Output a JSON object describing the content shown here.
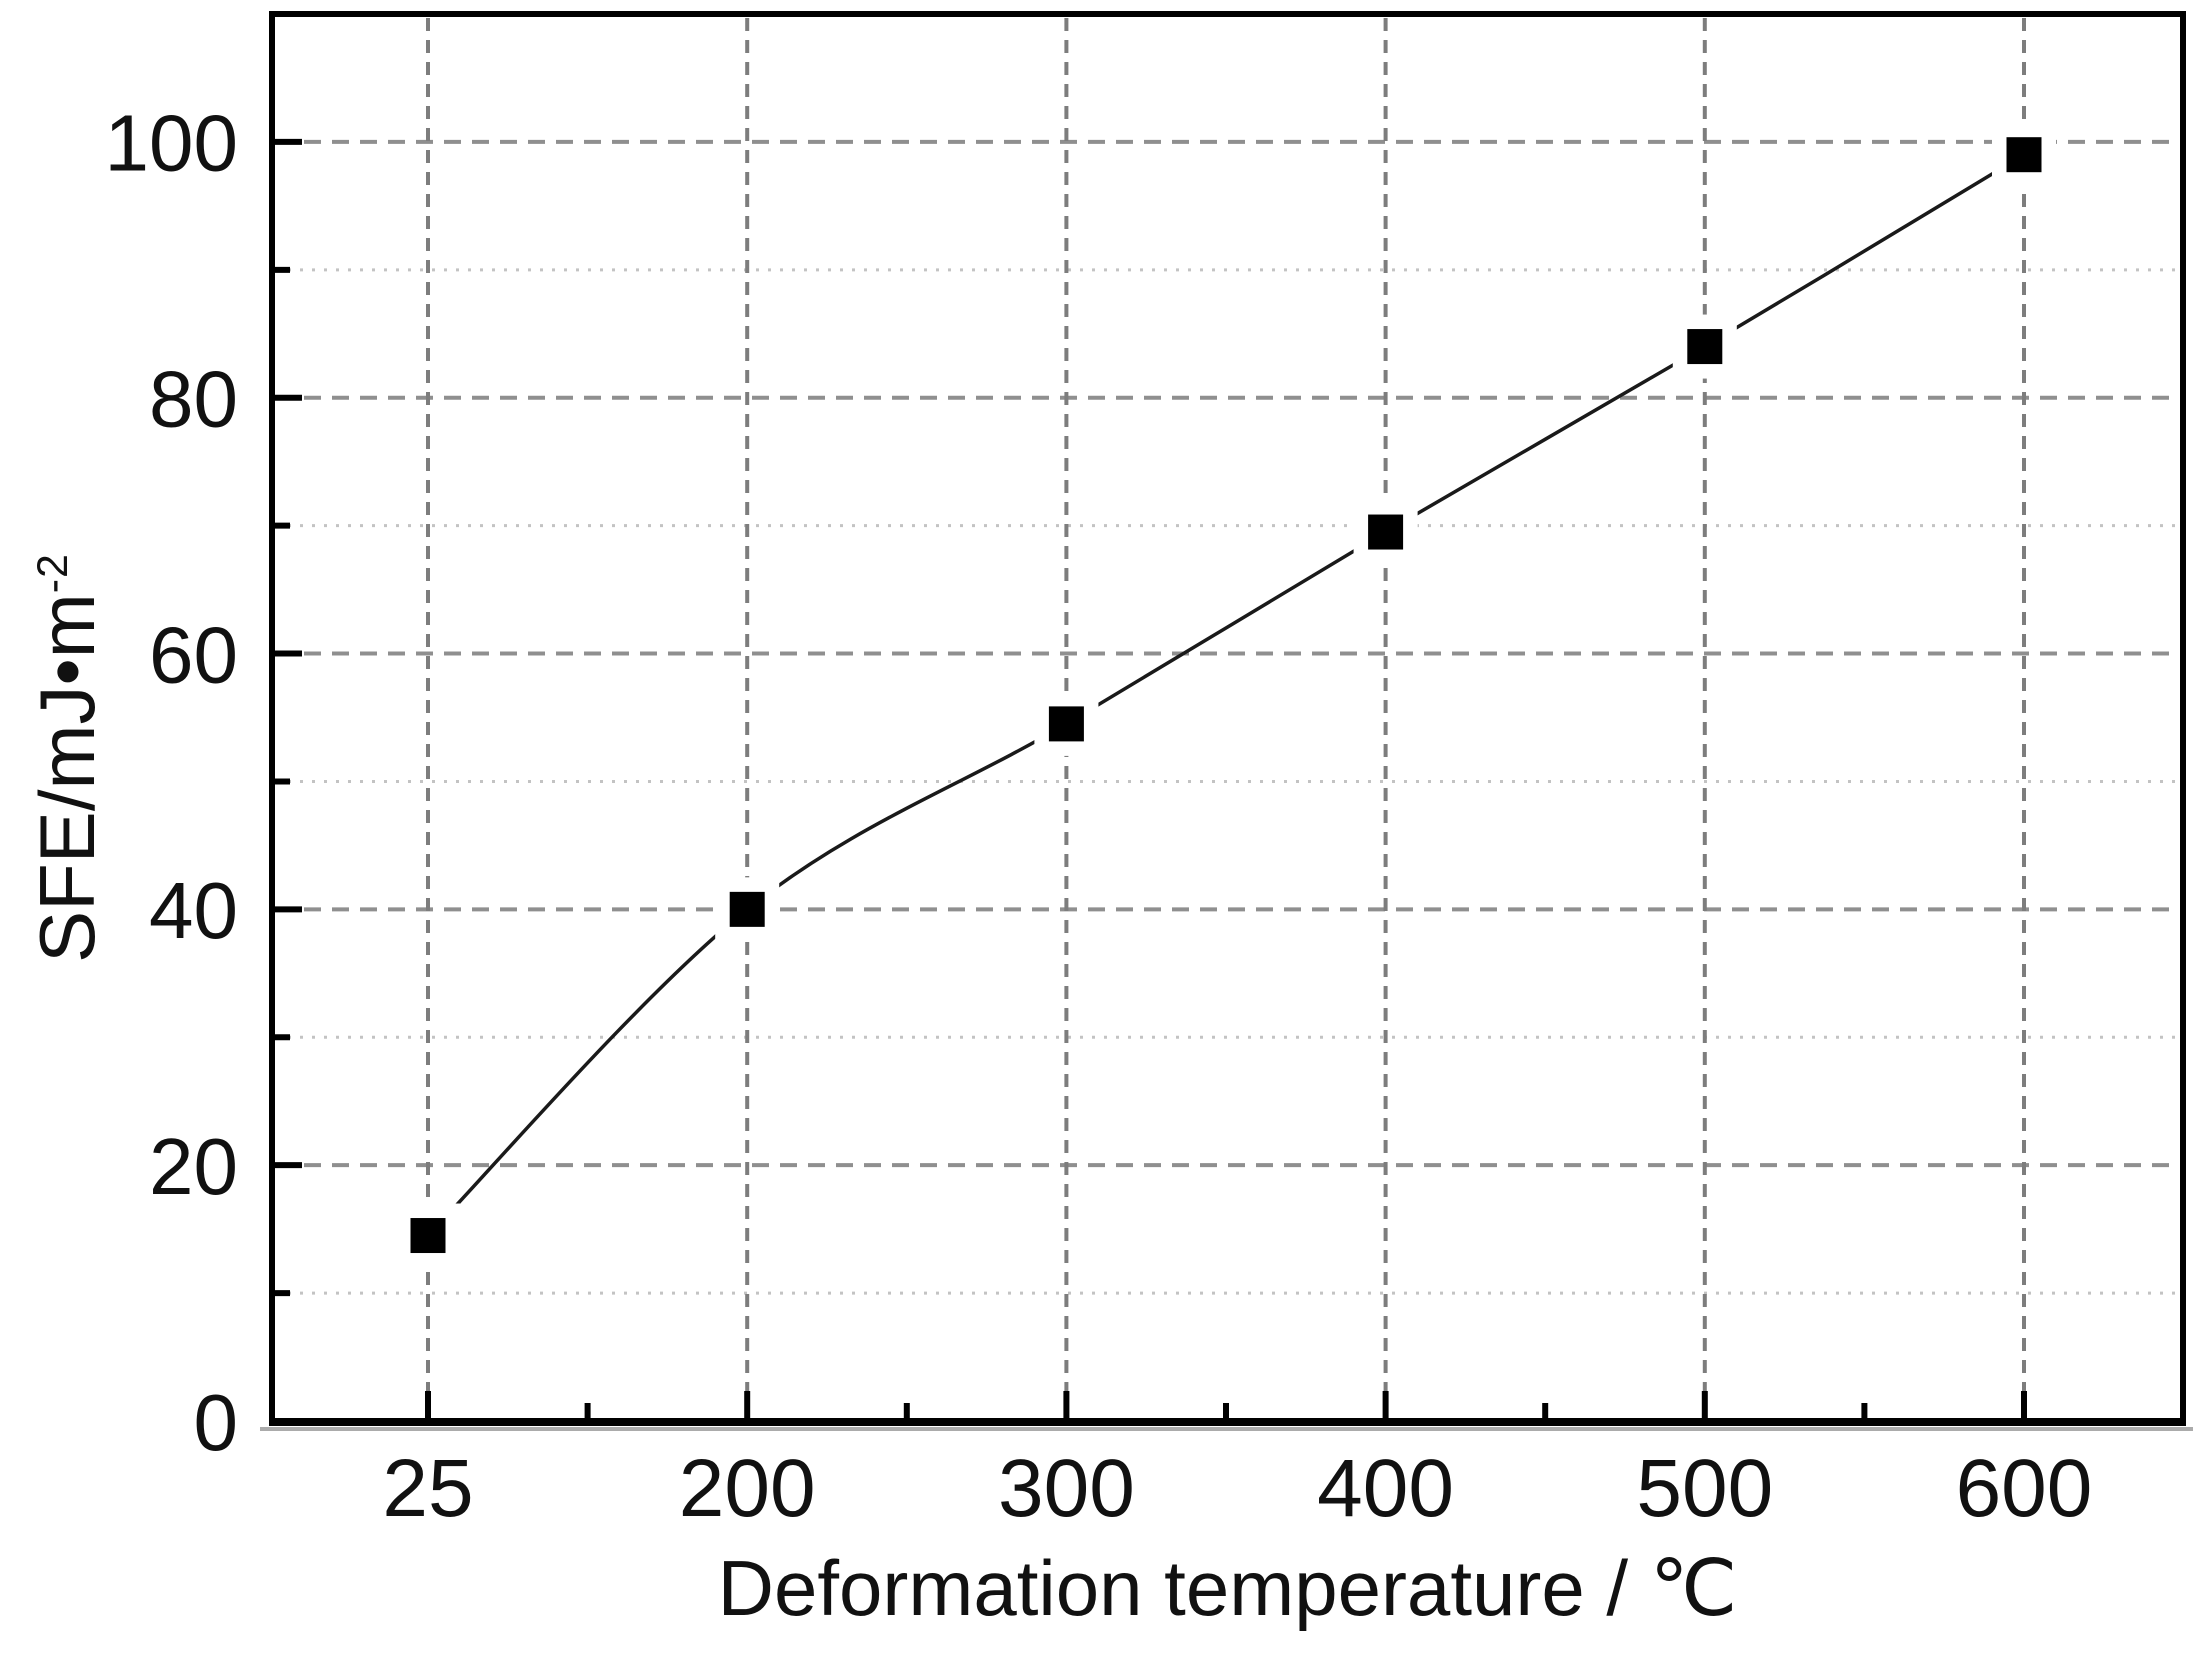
{
  "chart_data": {
    "type": "line",
    "title": "",
    "categories": [
      "25",
      "200",
      "300",
      "400",
      "500",
      "600"
    ],
    "series": [
      {
        "name": "SFE",
        "marker": "filled-square",
        "line_style": "solid-spline",
        "values": [
          14.5,
          40,
          54.5,
          69.5,
          84,
          99
        ]
      }
    ],
    "xlabel": "Deformation temperature / ℃",
    "ylabel": "SFE/mJ•m⁻²",
    "ylabel_base": "SFE/mJ•m",
    "ylabel_sup": "-2",
    "ylim": [
      0,
      110
    ],
    "x_axis_scale": "categorical-evenly-spaced",
    "y_major_ticks": [
      "0",
      "20",
      "40",
      "60",
      "80",
      "100"
    ],
    "y_minor_ticks": [
      10,
      30,
      50,
      70,
      90
    ],
    "grid": {
      "major_horizontal": "dashed",
      "minor_horizontal": "dotted",
      "vertical_at_major_x": "dashed",
      "shown": true
    },
    "legend": "none",
    "frame": "full-box",
    "colors": {
      "line": "#1a1a1a",
      "marker": "#000000",
      "grid_major": "#8f8f8f",
      "grid_vertical": "#7d7d7d",
      "grid_minor": "#c3c3c3",
      "axis": "#000000",
      "text": "#111111",
      "background": "#ffffff"
    }
  }
}
